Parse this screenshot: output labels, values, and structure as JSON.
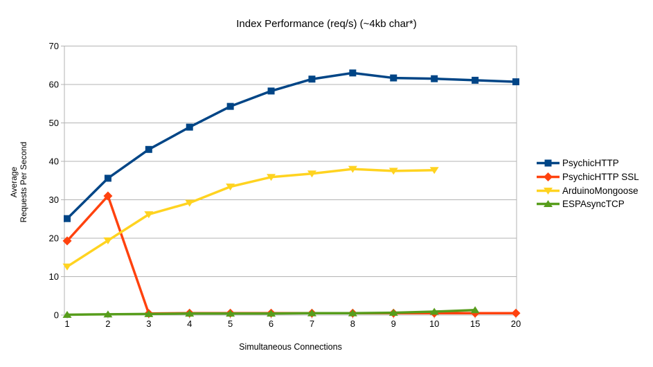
{
  "chart_data": {
    "type": "line",
    "title": "Index Performance (req/s) (~4kb char*)",
    "xlabel": "Simultaneous Connections",
    "ylabel": "Average\nRequests Per Second",
    "categories": [
      "1",
      "2",
      "3",
      "4",
      "5",
      "6",
      "7",
      "8",
      "9",
      "10",
      "15",
      "20"
    ],
    "ylim": [
      0,
      70
    ],
    "yticks": [
      0,
      10,
      20,
      30,
      40,
      50,
      60,
      70
    ],
    "grid": "horizontal",
    "legend_position": "right",
    "series": [
      {
        "name": "PsychicHTTP",
        "color": "#004586",
        "marker": "square",
        "values": [
          25.1,
          35.6,
          43.1,
          48.9,
          54.3,
          58.3,
          61.4,
          63.0,
          61.7,
          61.5,
          61.1,
          60.7
        ]
      },
      {
        "name": "PsychicHTTP SSL",
        "color": "#FF420E",
        "marker": "diamond",
        "values": [
          19.3,
          31.0,
          0.4,
          0.5,
          0.5,
          0.5,
          0.5,
          0.5,
          0.5,
          0.5,
          0.5,
          0.5
        ]
      },
      {
        "name": "ArduinoMongoose",
        "color": "#FFD320",
        "marker": "triangle-down",
        "values": [
          12.6,
          19.4,
          26.2,
          29.2,
          33.4,
          35.9,
          36.8,
          38.0,
          37.5,
          37.7,
          null,
          null
        ]
      },
      {
        "name": "ESPAsyncTCP",
        "color": "#579D1C",
        "marker": "triangle-up",
        "values": [
          0.1,
          0.2,
          0.3,
          0.4,
          0.4,
          0.4,
          0.5,
          0.5,
          0.6,
          0.9,
          1.3,
          null
        ]
      }
    ]
  },
  "colors": {
    "grid": "#b3b3b3",
    "axis": "#b3b3b3",
    "text": "#000000",
    "background": "#ffffff"
  }
}
